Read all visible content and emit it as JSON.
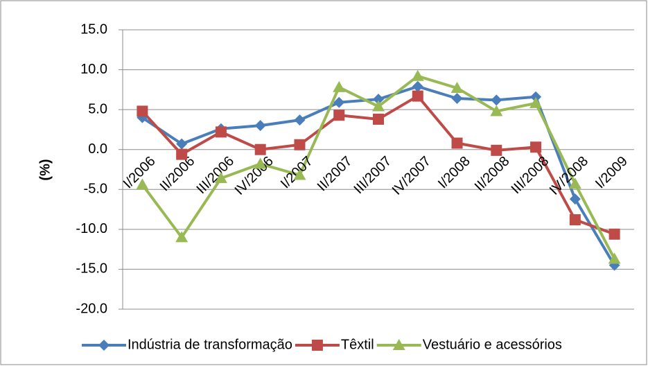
{
  "chart_data": {
    "type": "line",
    "y_label": "(%)",
    "categories": [
      "I/2006",
      "II/2006",
      "III/2006",
      "IV/2006",
      "I/2007",
      "II/2007",
      "III/2007",
      "IV/2007",
      "I/2008",
      "II/2008",
      "III/2008",
      "IV/2008",
      "I/2009"
    ],
    "series": [
      {
        "name": "Indústria de transformação",
        "color": "#4a7ebb",
        "marker": "diamond",
        "values": [
          4.0,
          0.7,
          2.6,
          3.0,
          3.7,
          5.9,
          6.3,
          7.9,
          6.4,
          6.2,
          6.6,
          -6.2,
          -14.5
        ]
      },
      {
        "name": "Têxtil",
        "color": "#be4b48",
        "marker": "square",
        "values": [
          4.8,
          -0.6,
          2.2,
          0.0,
          0.6,
          4.3,
          3.8,
          6.7,
          0.8,
          -0.1,
          0.3,
          -8.8,
          -10.6
        ]
      },
      {
        "name": "Vestuário e acessórios",
        "color": "#98b954",
        "marker": "triangle",
        "values": [
          -4.4,
          -11.0,
          -3.6,
          -1.8,
          -3.2,
          7.8,
          5.4,
          9.2,
          7.7,
          4.8,
          5.8,
          -4.3,
          -13.7
        ]
      }
    ],
    "ylim": [
      -20,
      15
    ],
    "yticks": [
      {
        "value": -20,
        "label": "-20.0"
      },
      {
        "value": -15,
        "label": "-15.0"
      },
      {
        "value": -10,
        "label": "-10.0"
      },
      {
        "value": -5,
        "label": "-5.0"
      },
      {
        "value": 0,
        "label": "0.0"
      },
      {
        "value": 5,
        "label": "5.0"
      },
      {
        "value": 10,
        "label": "10.0"
      },
      {
        "value": 15,
        "label": "15.0"
      }
    ],
    "grid": true,
    "legend": "bottom"
  }
}
